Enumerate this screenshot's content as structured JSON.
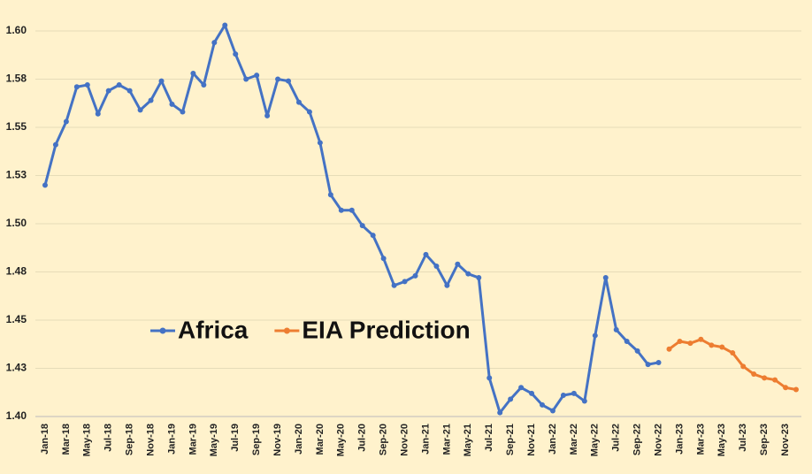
{
  "chart_data": {
    "type": "line",
    "categories": [
      "Jan-18",
      null,
      "Mar-18",
      null,
      "May-18",
      null,
      "Jul-18",
      null,
      "Sep-18",
      null,
      "Nov-18",
      null,
      "Jan-19",
      null,
      "Mar-19",
      null,
      "May-19",
      null,
      "Jul-19",
      null,
      "Sep-19",
      null,
      "Nov-19",
      null,
      "Jan-20",
      null,
      "Mar-20",
      null,
      "May-20",
      null,
      "Jul-20",
      null,
      "Sep-20",
      null,
      "Nov-20",
      null,
      "Jan-21",
      null,
      "Mar-21",
      null,
      "May-21",
      null,
      "Jul-21",
      null,
      "Sep-21",
      null,
      "Nov-21",
      null,
      "Jan-22",
      null,
      "Mar-22",
      null,
      "May-22",
      null,
      "Jul-22",
      null,
      "Sep-22",
      null,
      "Nov-22",
      null,
      "Jan-23",
      null,
      "Mar-23",
      null,
      "May-23",
      null,
      "Jul-23",
      null,
      "Sep-23",
      null,
      "Nov-23",
      null
    ],
    "series": [
      {
        "name": "Africa",
        "color": "#4472c4",
        "values": [
          1.52,
          1.541,
          1.553,
          1.571,
          1.572,
          1.557,
          1.569,
          1.572,
          1.569,
          1.559,
          1.564,
          1.574,
          1.562,
          1.558,
          1.578,
          1.572,
          1.594,
          1.603,
          1.588,
          1.575,
          1.577,
          1.556,
          1.575,
          1.574,
          1.563,
          1.558,
          1.542,
          1.515,
          1.507,
          1.507,
          1.499,
          1.494,
          1.482,
          1.468,
          1.47,
          1.473,
          1.484,
          1.478,
          1.468,
          1.479,
          1.474,
          1.472,
          1.42,
          1.402,
          1.409,
          1.415,
          1.412,
          1.406,
          1.403,
          1.411,
          1.412,
          1.408,
          1.442,
          1.472,
          1.445,
          1.439,
          1.434,
          1.427,
          1.428,
          null,
          null,
          null,
          null,
          null,
          null,
          null,
          null,
          null,
          null,
          null,
          null,
          null
        ]
      },
      {
        "name": "EIA Prediction",
        "color": "#ed7d31",
        "values": [
          null,
          null,
          null,
          null,
          null,
          null,
          null,
          null,
          null,
          null,
          null,
          null,
          null,
          null,
          null,
          null,
          null,
          null,
          null,
          null,
          null,
          null,
          null,
          null,
          null,
          null,
          null,
          null,
          null,
          null,
          null,
          null,
          null,
          null,
          null,
          null,
          null,
          null,
          null,
          null,
          null,
          null,
          null,
          null,
          null,
          null,
          null,
          null,
          null,
          null,
          null,
          null,
          null,
          null,
          null,
          null,
          null,
          null,
          null,
          1.435,
          1.439,
          1.438,
          1.44,
          1.437,
          1.436,
          1.433,
          1.426,
          1.422,
          1.42,
          1.419,
          1.415,
          1.414
        ]
      }
    ],
    "ylim": [
      1.4,
      1.6
    ],
    "yticks": [
      {
        "value": 1.4,
        "label": "1.40"
      },
      {
        "value": 1.425,
        "label": "1.43"
      },
      {
        "value": 1.45,
        "label": "1.45"
      },
      {
        "value": 1.475,
        "label": "1.48"
      },
      {
        "value": 1.5,
        "label": "1.50"
      },
      {
        "value": 1.525,
        "label": "1.53"
      },
      {
        "value": 1.55,
        "label": "1.55"
      },
      {
        "value": 1.575,
        "label": "1.58"
      },
      {
        "value": 1.6,
        "label": "1.60"
      }
    ],
    "grid": true,
    "legend": "center"
  }
}
